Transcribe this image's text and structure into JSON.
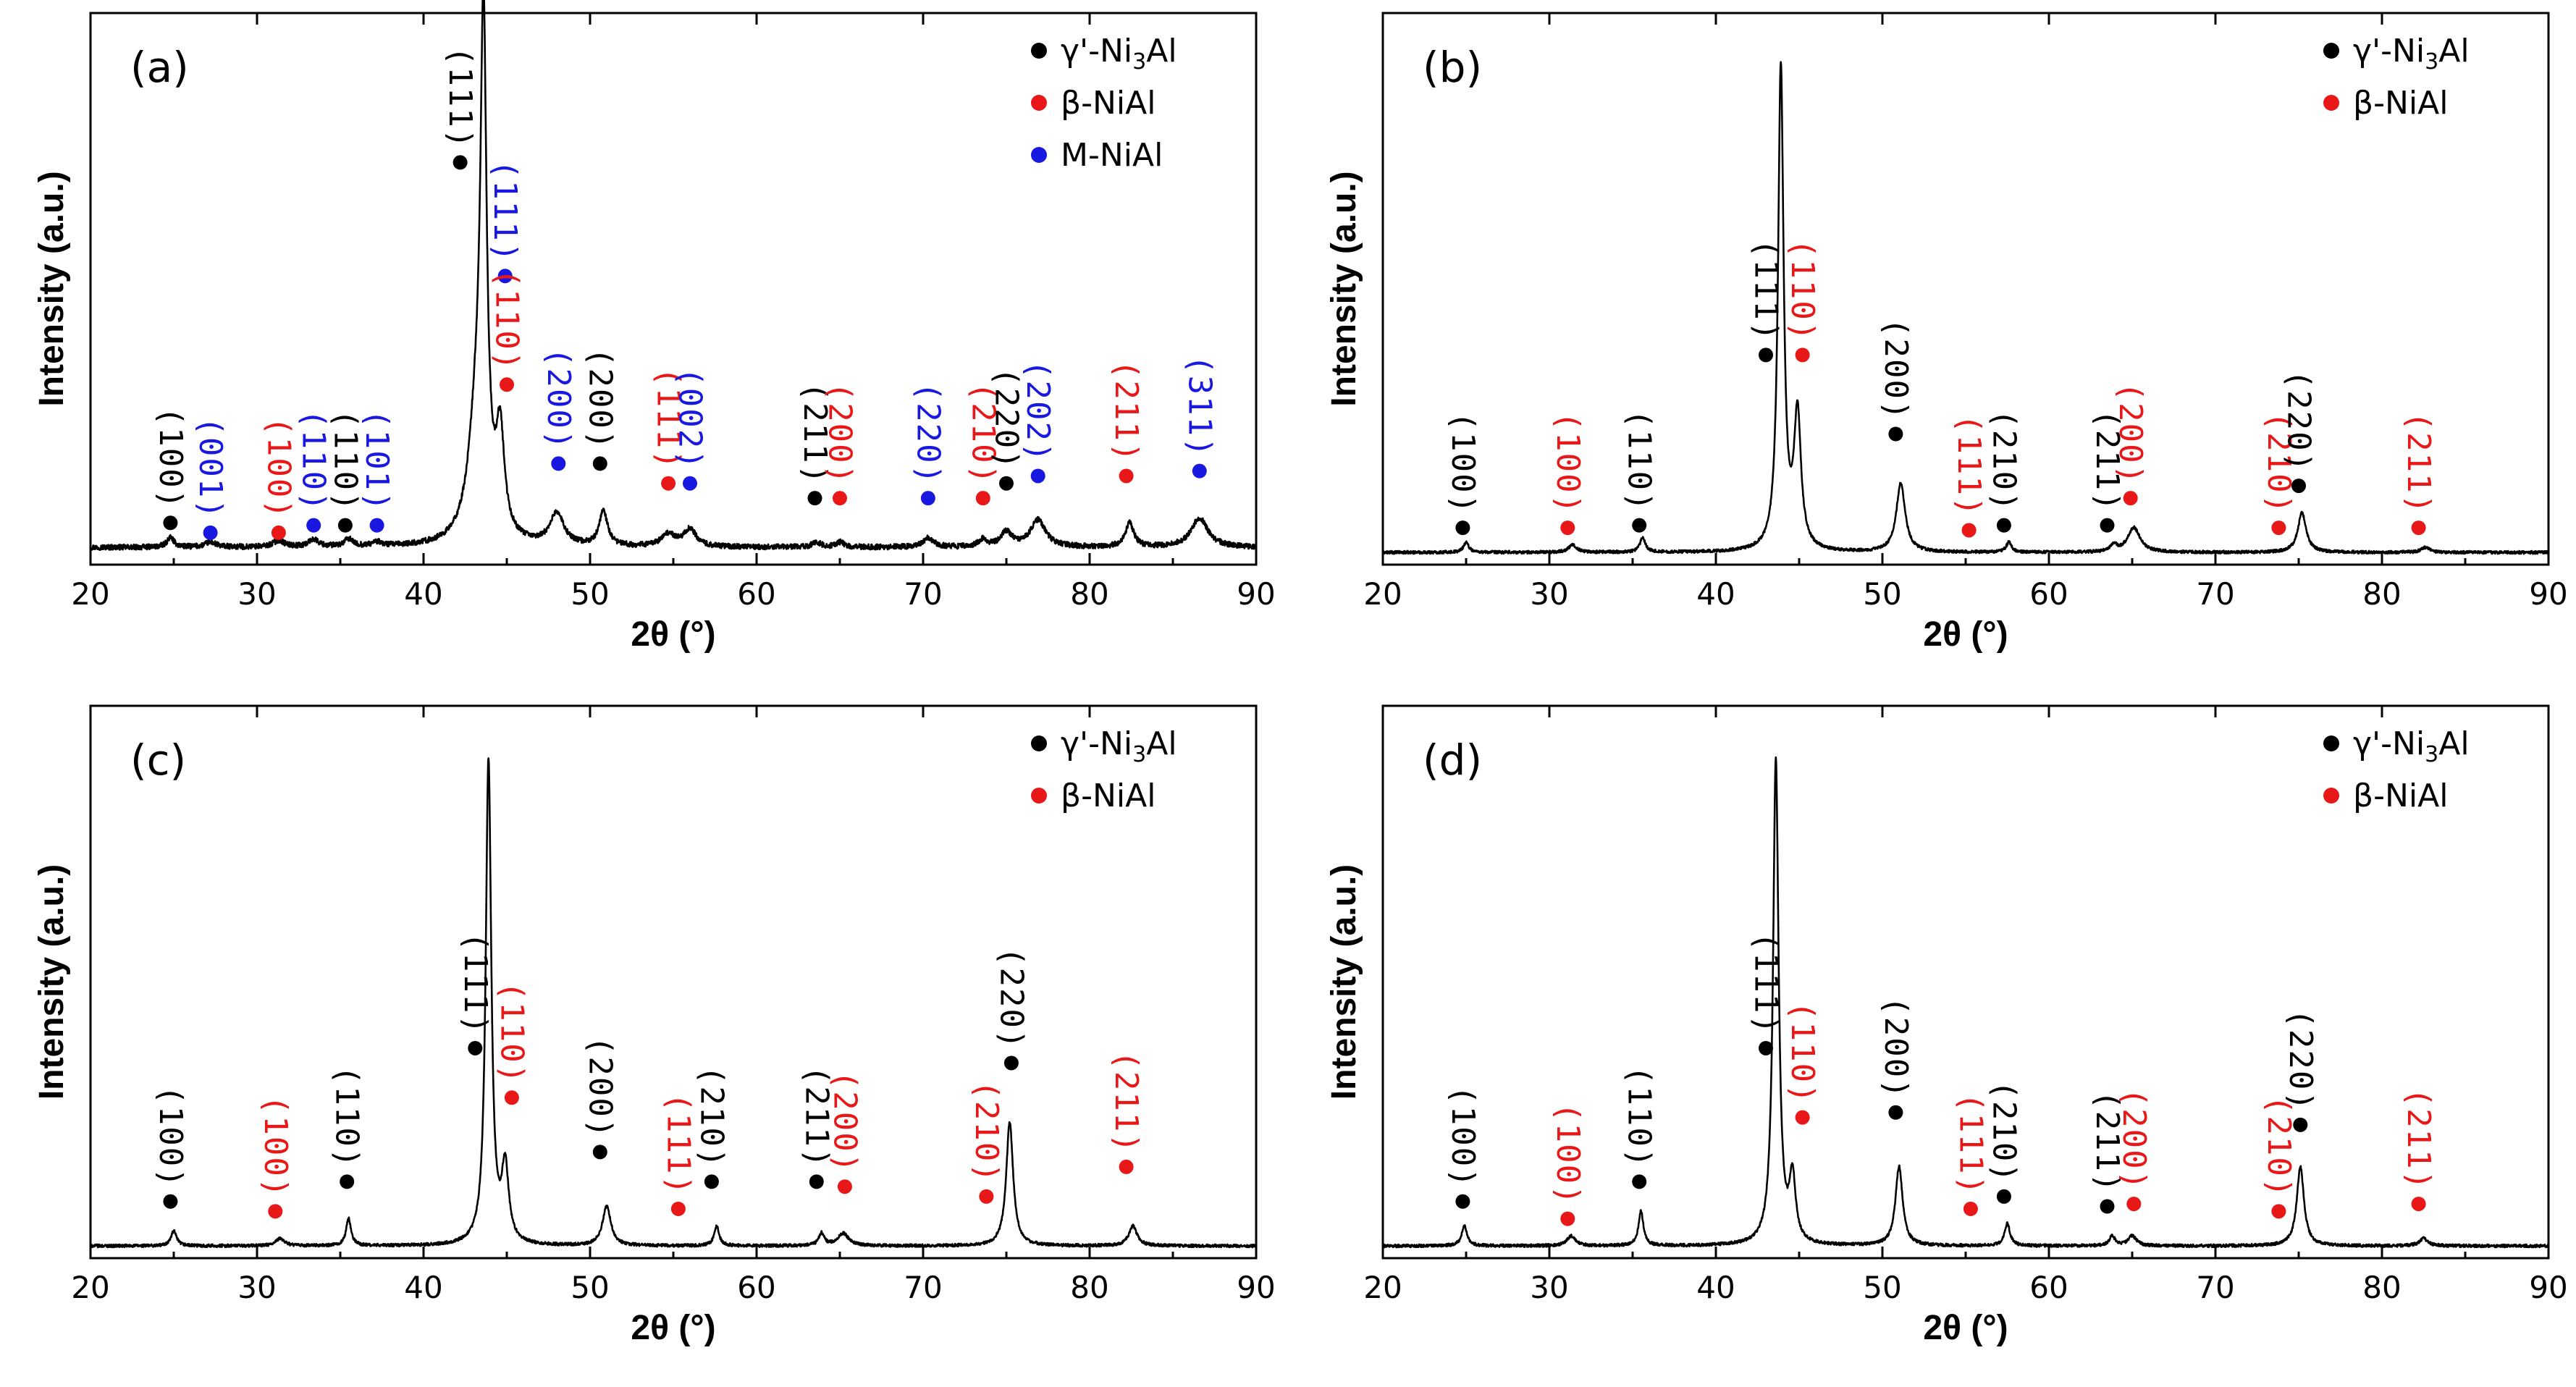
{
  "figure": {
    "type": "xrd-pattern-grid",
    "layout": "2x2"
  },
  "series_colors": {
    "gamma_prime": "#000000",
    "beta": "#e81818",
    "m": "#1818e0"
  },
  "chart_data": [
    {
      "type": "line",
      "title": "(a)",
      "xlabel": "2θ (°)",
      "ylabel": "Intensity (a.u.)",
      "xlim": [
        20,
        90
      ],
      "ylim": [
        0,
        100
      ],
      "xticks": [
        "20",
        "30",
        "40",
        "50",
        "60",
        "70",
        "80",
        "90"
      ],
      "legend_position": "top-right",
      "legend": [
        {
          "series": "gamma_prime",
          "prefix": "γ'-Ni",
          "sub": "3",
          "suffix": "Al"
        },
        {
          "series": "beta",
          "text": "β-NiAl"
        },
        {
          "series": "m",
          "text": "M-NiAl"
        }
      ],
      "noise": 0.55,
      "baseline": 2,
      "peaks": [
        {
          "x": 24.8,
          "h": 2,
          "w": 0.25
        },
        {
          "x": 27.2,
          "h": 1,
          "w": 0.4
        },
        {
          "x": 31.3,
          "h": 1.3,
          "w": 0.4
        },
        {
          "x": 33.4,
          "h": 1.5,
          "w": 0.35
        },
        {
          "x": 35.5,
          "h": 1.5,
          "w": 0.3
        },
        {
          "x": 37.2,
          "h": 0.8,
          "w": 0.35
        },
        {
          "x": 43.6,
          "h": 96,
          "w": 0.22
        },
        {
          "x": 43.2,
          "h": 24,
          "w": 0.6
        },
        {
          "x": 44.6,
          "h": 20,
          "w": 0.3
        },
        {
          "x": 48.0,
          "h": 6.5,
          "w": 0.5
        },
        {
          "x": 50.8,
          "h": 7,
          "w": 0.3
        },
        {
          "x": 54.7,
          "h": 2.5,
          "w": 0.5
        },
        {
          "x": 56.0,
          "h": 3.5,
          "w": 0.45
        },
        {
          "x": 63.6,
          "h": 1,
          "w": 0.3
        },
        {
          "x": 65.0,
          "h": 1,
          "w": 0.3
        },
        {
          "x": 70.3,
          "h": 1.8,
          "w": 0.4
        },
        {
          "x": 73.6,
          "h": 1.5,
          "w": 0.3
        },
        {
          "x": 75.0,
          "h": 3,
          "w": 0.4
        },
        {
          "x": 76.9,
          "h": 5.5,
          "w": 0.55
        },
        {
          "x": 82.4,
          "h": 5,
          "w": 0.3
        },
        {
          "x": 86.6,
          "h": 6,
          "w": 0.6
        }
      ],
      "annotations": [
        {
          "x": 24.8,
          "y": 7,
          "label": "(100)",
          "series": "gamma_prime"
        },
        {
          "x": 27.2,
          "y": 5,
          "label": "(001)",
          "series": "m"
        },
        {
          "x": 31.3,
          "y": 5,
          "label": "(100)",
          "series": "beta"
        },
        {
          "x": 33.4,
          "y": 6.5,
          "label": "(110)",
          "series": "m"
        },
        {
          "x": 35.3,
          "y": 6.5,
          "label": "(110)",
          "series": "gamma_prime"
        },
        {
          "x": 37.2,
          "y": 6.5,
          "label": "(101)",
          "series": "m"
        },
        {
          "x": 42.2,
          "y": 80,
          "label": "(111)",
          "series": "gamma_prime"
        },
        {
          "x": 44.9,
          "y": 57,
          "label": "(111)",
          "series": "m"
        },
        {
          "x": 45.0,
          "y": 35,
          "label": "(110)",
          "series": "beta"
        },
        {
          "x": 48.1,
          "y": 19,
          "label": "(200)",
          "series": "m"
        },
        {
          "x": 50.6,
          "y": 19,
          "label": "(200)",
          "series": "gamma_prime"
        },
        {
          "x": 54.7,
          "y": 15,
          "label": "(111)",
          "series": "beta"
        },
        {
          "x": 56.0,
          "y": 15,
          "label": "(002)",
          "series": "m"
        },
        {
          "x": 63.5,
          "y": 12,
          "label": "(211)",
          "series": "gamma_prime"
        },
        {
          "x": 65.0,
          "y": 12,
          "label": "(200)",
          "series": "beta"
        },
        {
          "x": 70.3,
          "y": 12,
          "label": "(220)",
          "series": "m"
        },
        {
          "x": 73.6,
          "y": 12,
          "label": "(210)",
          "series": "beta"
        },
        {
          "x": 75.0,
          "y": 15,
          "label": "(220)",
          "series": "gamma_prime"
        },
        {
          "x": 76.9,
          "y": 16.5,
          "label": "(202)",
          "series": "m"
        },
        {
          "x": 82.2,
          "y": 16.5,
          "label": "(211)",
          "series": "beta"
        },
        {
          "x": 86.6,
          "y": 17.5,
          "label": "(311)",
          "series": "m"
        }
      ]
    },
    {
      "type": "line",
      "title": "(b)",
      "xlabel": "2θ (°)",
      "ylabel": "Intensity (a.u.)",
      "xlim": [
        20,
        90
      ],
      "ylim": [
        0,
        100
      ],
      "xticks": [
        "20",
        "30",
        "40",
        "50",
        "60",
        "70",
        "80",
        "90"
      ],
      "legend_position": "top-right",
      "legend": [
        {
          "series": "gamma_prime",
          "prefix": "γ'-Ni",
          "sub": "3",
          "suffix": "Al"
        },
        {
          "series": "beta",
          "text": "β-NiAl"
        }
      ],
      "noise": 0.3,
      "baseline": 1,
      "peaks": [
        {
          "x": 25.0,
          "h": 2,
          "w": 0.2
        },
        {
          "x": 31.4,
          "h": 1.5,
          "w": 0.3
        },
        {
          "x": 35.6,
          "h": 3,
          "w": 0.2
        },
        {
          "x": 43.9,
          "h": 98,
          "w": 0.2
        },
        {
          "x": 44.9,
          "h": 27,
          "w": 0.25
        },
        {
          "x": 51.1,
          "h": 14,
          "w": 0.32
        },
        {
          "x": 57.6,
          "h": 2,
          "w": 0.2
        },
        {
          "x": 63.9,
          "h": 1.5,
          "w": 0.2
        },
        {
          "x": 65.1,
          "h": 5,
          "w": 0.45
        },
        {
          "x": 75.2,
          "h": 8,
          "w": 0.3
        },
        {
          "x": 82.6,
          "h": 1,
          "w": 0.3
        }
      ],
      "annotations": [
        {
          "x": 24.8,
          "y": 6,
          "label": "(100)",
          "series": "gamma_prime"
        },
        {
          "x": 31.1,
          "y": 6,
          "label": "(100)",
          "series": "beta"
        },
        {
          "x": 35.4,
          "y": 6.5,
          "label": "(110)",
          "series": "gamma_prime"
        },
        {
          "x": 43.0,
          "y": 41,
          "label": "(111)",
          "series": "gamma_prime"
        },
        {
          "x": 45.2,
          "y": 41,
          "label": "(110)",
          "series": "beta"
        },
        {
          "x": 50.8,
          "y": 25,
          "label": "(200)",
          "series": "gamma_prime"
        },
        {
          "x": 55.2,
          "y": 5.5,
          "label": "(111)",
          "series": "beta"
        },
        {
          "x": 57.3,
          "y": 6.5,
          "label": "(210)",
          "series": "gamma_prime"
        },
        {
          "x": 63.5,
          "y": 6.5,
          "label": "(211)",
          "series": "gamma_prime"
        },
        {
          "x": 64.9,
          "y": 12,
          "label": "(200)",
          "series": "beta"
        },
        {
          "x": 73.8,
          "y": 6,
          "label": "(210)",
          "series": "beta"
        },
        {
          "x": 75.0,
          "y": 14.5,
          "label": "(220)",
          "series": "gamma_prime"
        },
        {
          "x": 82.2,
          "y": 6,
          "label": "(211)",
          "series": "beta"
        }
      ]
    },
    {
      "type": "line",
      "title": "(c)",
      "xlabel": "2θ (°)",
      "ylabel": "Intensity (a.u.)",
      "xlim": [
        20,
        90
      ],
      "ylim": [
        0,
        100
      ],
      "xticks": [
        "20",
        "30",
        "40",
        "50",
        "60",
        "70",
        "80",
        "90"
      ],
      "legend_position": "top-right",
      "legend": [
        {
          "series": "gamma_prime",
          "prefix": "γ'-Ni",
          "sub": "3",
          "suffix": "Al"
        },
        {
          "series": "beta",
          "text": "β-NiAl"
        }
      ],
      "noise": 0.3,
      "baseline": 1,
      "peaks": [
        {
          "x": 25.0,
          "h": 3,
          "w": 0.2
        },
        {
          "x": 31.4,
          "h": 1.5,
          "w": 0.3
        },
        {
          "x": 35.5,
          "h": 5.5,
          "w": 0.18
        },
        {
          "x": 43.9,
          "h": 98,
          "w": 0.2
        },
        {
          "x": 44.9,
          "h": 15,
          "w": 0.25
        },
        {
          "x": 51.0,
          "h": 8,
          "w": 0.3
        },
        {
          "x": 57.6,
          "h": 4,
          "w": 0.18
        },
        {
          "x": 63.9,
          "h": 2.5,
          "w": 0.2
        },
        {
          "x": 65.2,
          "h": 2.5,
          "w": 0.4
        },
        {
          "x": 75.2,
          "h": 25,
          "w": 0.25
        },
        {
          "x": 82.6,
          "h": 4,
          "w": 0.3
        }
      ],
      "annotations": [
        {
          "x": 24.8,
          "y": 10,
          "label": "(100)",
          "series": "gamma_prime"
        },
        {
          "x": 31.1,
          "y": 8,
          "label": "(100)",
          "series": "beta"
        },
        {
          "x": 35.4,
          "y": 14,
          "label": "(110)",
          "series": "gamma_prime"
        },
        {
          "x": 43.1,
          "y": 41,
          "label": "(111)",
          "series": "gamma_prime"
        },
        {
          "x": 45.3,
          "y": 31,
          "label": "(110)",
          "series": "beta"
        },
        {
          "x": 50.6,
          "y": 20,
          "label": "(200)",
          "series": "gamma_prime"
        },
        {
          "x": 55.3,
          "y": 8.5,
          "label": "(111)",
          "series": "beta"
        },
        {
          "x": 57.3,
          "y": 14,
          "label": "(210)",
          "series": "gamma_prime"
        },
        {
          "x": 63.6,
          "y": 14,
          "label": "(211)",
          "series": "gamma_prime"
        },
        {
          "x": 65.3,
          "y": 13,
          "label": "(200)",
          "series": "beta"
        },
        {
          "x": 73.8,
          "y": 11,
          "label": "(210)",
          "series": "beta"
        },
        {
          "x": 75.3,
          "y": 38,
          "label": "(220)",
          "series": "gamma_prime"
        },
        {
          "x": 82.2,
          "y": 17,
          "label": "(211)",
          "series": "beta"
        }
      ]
    },
    {
      "type": "line",
      "title": "(d)",
      "xlabel": "2θ (°)",
      "ylabel": "Intensity (a.u.)",
      "xlim": [
        20,
        90
      ],
      "ylim": [
        0,
        100
      ],
      "xticks": [
        "20",
        "30",
        "40",
        "50",
        "60",
        "70",
        "80",
        "90"
      ],
      "legend_position": "top-right",
      "legend": [
        {
          "series": "gamma_prime",
          "prefix": "γ'-Ni",
          "sub": "3",
          "suffix": "Al"
        },
        {
          "series": "beta",
          "text": "β-NiAl"
        }
      ],
      "noise": 0.3,
      "baseline": 1,
      "peaks": [
        {
          "x": 24.9,
          "h": 4,
          "w": 0.2
        },
        {
          "x": 31.3,
          "h": 2,
          "w": 0.3
        },
        {
          "x": 35.5,
          "h": 7,
          "w": 0.18
        },
        {
          "x": 43.6,
          "h": 98,
          "w": 0.2
        },
        {
          "x": 44.6,
          "h": 13,
          "w": 0.22
        },
        {
          "x": 51.0,
          "h": 16,
          "w": 0.26
        },
        {
          "x": 57.5,
          "h": 4.5,
          "w": 0.2
        },
        {
          "x": 63.8,
          "h": 2,
          "w": 0.2
        },
        {
          "x": 65.0,
          "h": 2,
          "w": 0.3
        },
        {
          "x": 75.1,
          "h": 16,
          "w": 0.26
        },
        {
          "x": 82.5,
          "h": 1.5,
          "w": 0.3
        }
      ],
      "annotations": [
        {
          "x": 24.8,
          "y": 10,
          "label": "(100)",
          "series": "gamma_prime"
        },
        {
          "x": 31.1,
          "y": 6.5,
          "label": "(100)",
          "series": "beta"
        },
        {
          "x": 35.4,
          "y": 14,
          "label": "(110)",
          "series": "gamma_prime"
        },
        {
          "x": 43.0,
          "y": 41,
          "label": "(111)",
          "series": "gamma_prime"
        },
        {
          "x": 45.2,
          "y": 27,
          "label": "(110)",
          "series": "beta"
        },
        {
          "x": 50.8,
          "y": 28,
          "label": "(200)",
          "series": "gamma_prime"
        },
        {
          "x": 55.3,
          "y": 8.5,
          "label": "(111)",
          "series": "beta"
        },
        {
          "x": 57.3,
          "y": 11,
          "label": "(210)",
          "series": "gamma_prime"
        },
        {
          "x": 63.5,
          "y": 9,
          "label": "(211)",
          "series": "gamma_prime"
        },
        {
          "x": 65.1,
          "y": 9.5,
          "label": "(200)",
          "series": "beta"
        },
        {
          "x": 73.8,
          "y": 8,
          "label": "(210)",
          "series": "beta"
        },
        {
          "x": 75.1,
          "y": 25.5,
          "label": "(220)",
          "series": "gamma_prime"
        },
        {
          "x": 82.2,
          "y": 9.5,
          "label": "(211)",
          "series": "beta"
        }
      ]
    }
  ]
}
